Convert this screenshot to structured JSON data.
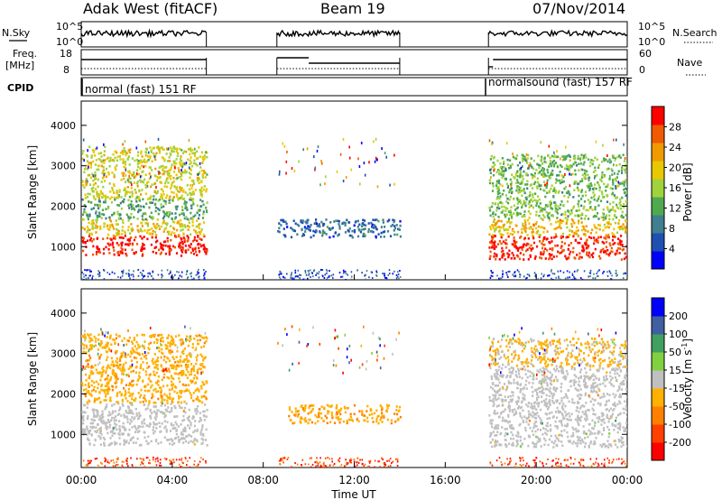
{
  "header": {
    "station": "Adak West (fitACF)",
    "beam": "Beam 19",
    "date": "07/Nov/2014"
  },
  "side_labels": {
    "nsky": "N.Sky",
    "nsearch": "N.Search",
    "freq_line1": "Freq.",
    "freq_line2": "[MHz]",
    "nave": "Nave",
    "cpid": "CPID"
  },
  "noise_axis": {
    "left": [
      "10^5",
      "10^0"
    ],
    "right": [
      "10^5",
      "10^0"
    ]
  },
  "freq_axis": {
    "left": [
      "18",
      "8"
    ],
    "right": [
      "60",
      "0"
    ]
  },
  "cpid_labels": [
    "normal (fast) 151 RF",
    "normalsound (fast) 157 RF"
  ],
  "colors": {
    "power": [
      "#0000ff",
      "#1f4fb0",
      "#3f7f8f",
      "#4faa4f",
      "#a0d23c",
      "#e8c800",
      "#f09a00",
      "#f05a00",
      "#ff0000"
    ],
    "velocity": [
      "#ff0000",
      "#ff4000",
      "#ff8000",
      "#ffb000",
      "#c0c0c0",
      "#80d040",
      "#40a060",
      "#3f5fa0",
      "#0000ff"
    ],
    "ground_scatter": "#c0c0c0"
  },
  "chart_data": [
    {
      "type": "heatmap",
      "panel": "power",
      "ylabel": "Slant Range [km]",
      "yticks": [
        "4000",
        "3000",
        "2000",
        "1000"
      ],
      "ylim": [
        180,
        4600
      ],
      "colorbar_label": "Power [dB]",
      "colorbar_ticks": [
        "28",
        "24",
        "20",
        "16",
        "12",
        "8",
        "4"
      ],
      "clim": [
        0,
        32
      ],
      "regions": [
        {
          "t0": 0.0,
          "t1": 5.5,
          "r0": 800,
          "r1": 1300,
          "level": 30
        },
        {
          "t0": 0.0,
          "t1": 5.5,
          "r0": 1300,
          "r1": 1700,
          "level": 20
        },
        {
          "t0": 0.0,
          "t1": 5.5,
          "r0": 1700,
          "r1": 2200,
          "level": 12
        },
        {
          "t0": 0.0,
          "t1": 5.5,
          "r0": 2200,
          "r1": 3500,
          "level": 18
        },
        {
          "t0": 8.6,
          "t1": 14.0,
          "r0": 1250,
          "r1": 1700,
          "level": 7
        },
        {
          "t0": 17.9,
          "t1": 24.0,
          "r0": 700,
          "r1": 1300,
          "level": 29
        },
        {
          "t0": 17.9,
          "t1": 24.0,
          "r0": 1300,
          "r1": 1700,
          "level": 21
        },
        {
          "t0": 17.9,
          "t1": 24.0,
          "r0": 1700,
          "r1": 3300,
          "level": 14
        }
      ]
    },
    {
      "type": "heatmap",
      "panel": "velocity",
      "ylabel": "Slant Range [km]",
      "yticks": [
        "4000",
        "3000",
        "2000",
        "1000"
      ],
      "ylim": [
        180,
        4600
      ],
      "xlabel": "Time UT",
      "xticks": [
        "00:00",
        "04:00",
        "08:00",
        "12:00",
        "16:00",
        "20:00",
        "00:00"
      ],
      "xlim": [
        0,
        24
      ],
      "colorbar_label": "Velocity [m s^-1]",
      "colorbar_ticks": [
        "200",
        "100",
        "50",
        "15",
        "-15",
        "-50",
        "-100",
        "-200"
      ],
      "clim": [
        -250,
        250
      ],
      "regions": [
        {
          "t0": 0.0,
          "t1": 5.5,
          "r0": 750,
          "r1": 1800,
          "level": 0,
          "ground": true
        },
        {
          "t0": 0.0,
          "t1": 5.5,
          "r0": 1800,
          "r1": 3500,
          "level": -60
        },
        {
          "t0": 9.0,
          "t1": 14.0,
          "r0": 1300,
          "r1": 1750,
          "level": -70
        },
        {
          "t0": 17.9,
          "t1": 24.0,
          "r0": 700,
          "r1": 2700,
          "level": 0,
          "ground": true
        },
        {
          "t0": 17.9,
          "t1": 24.0,
          "r0": 2700,
          "r1": 3400,
          "level": -40
        }
      ]
    }
  ]
}
